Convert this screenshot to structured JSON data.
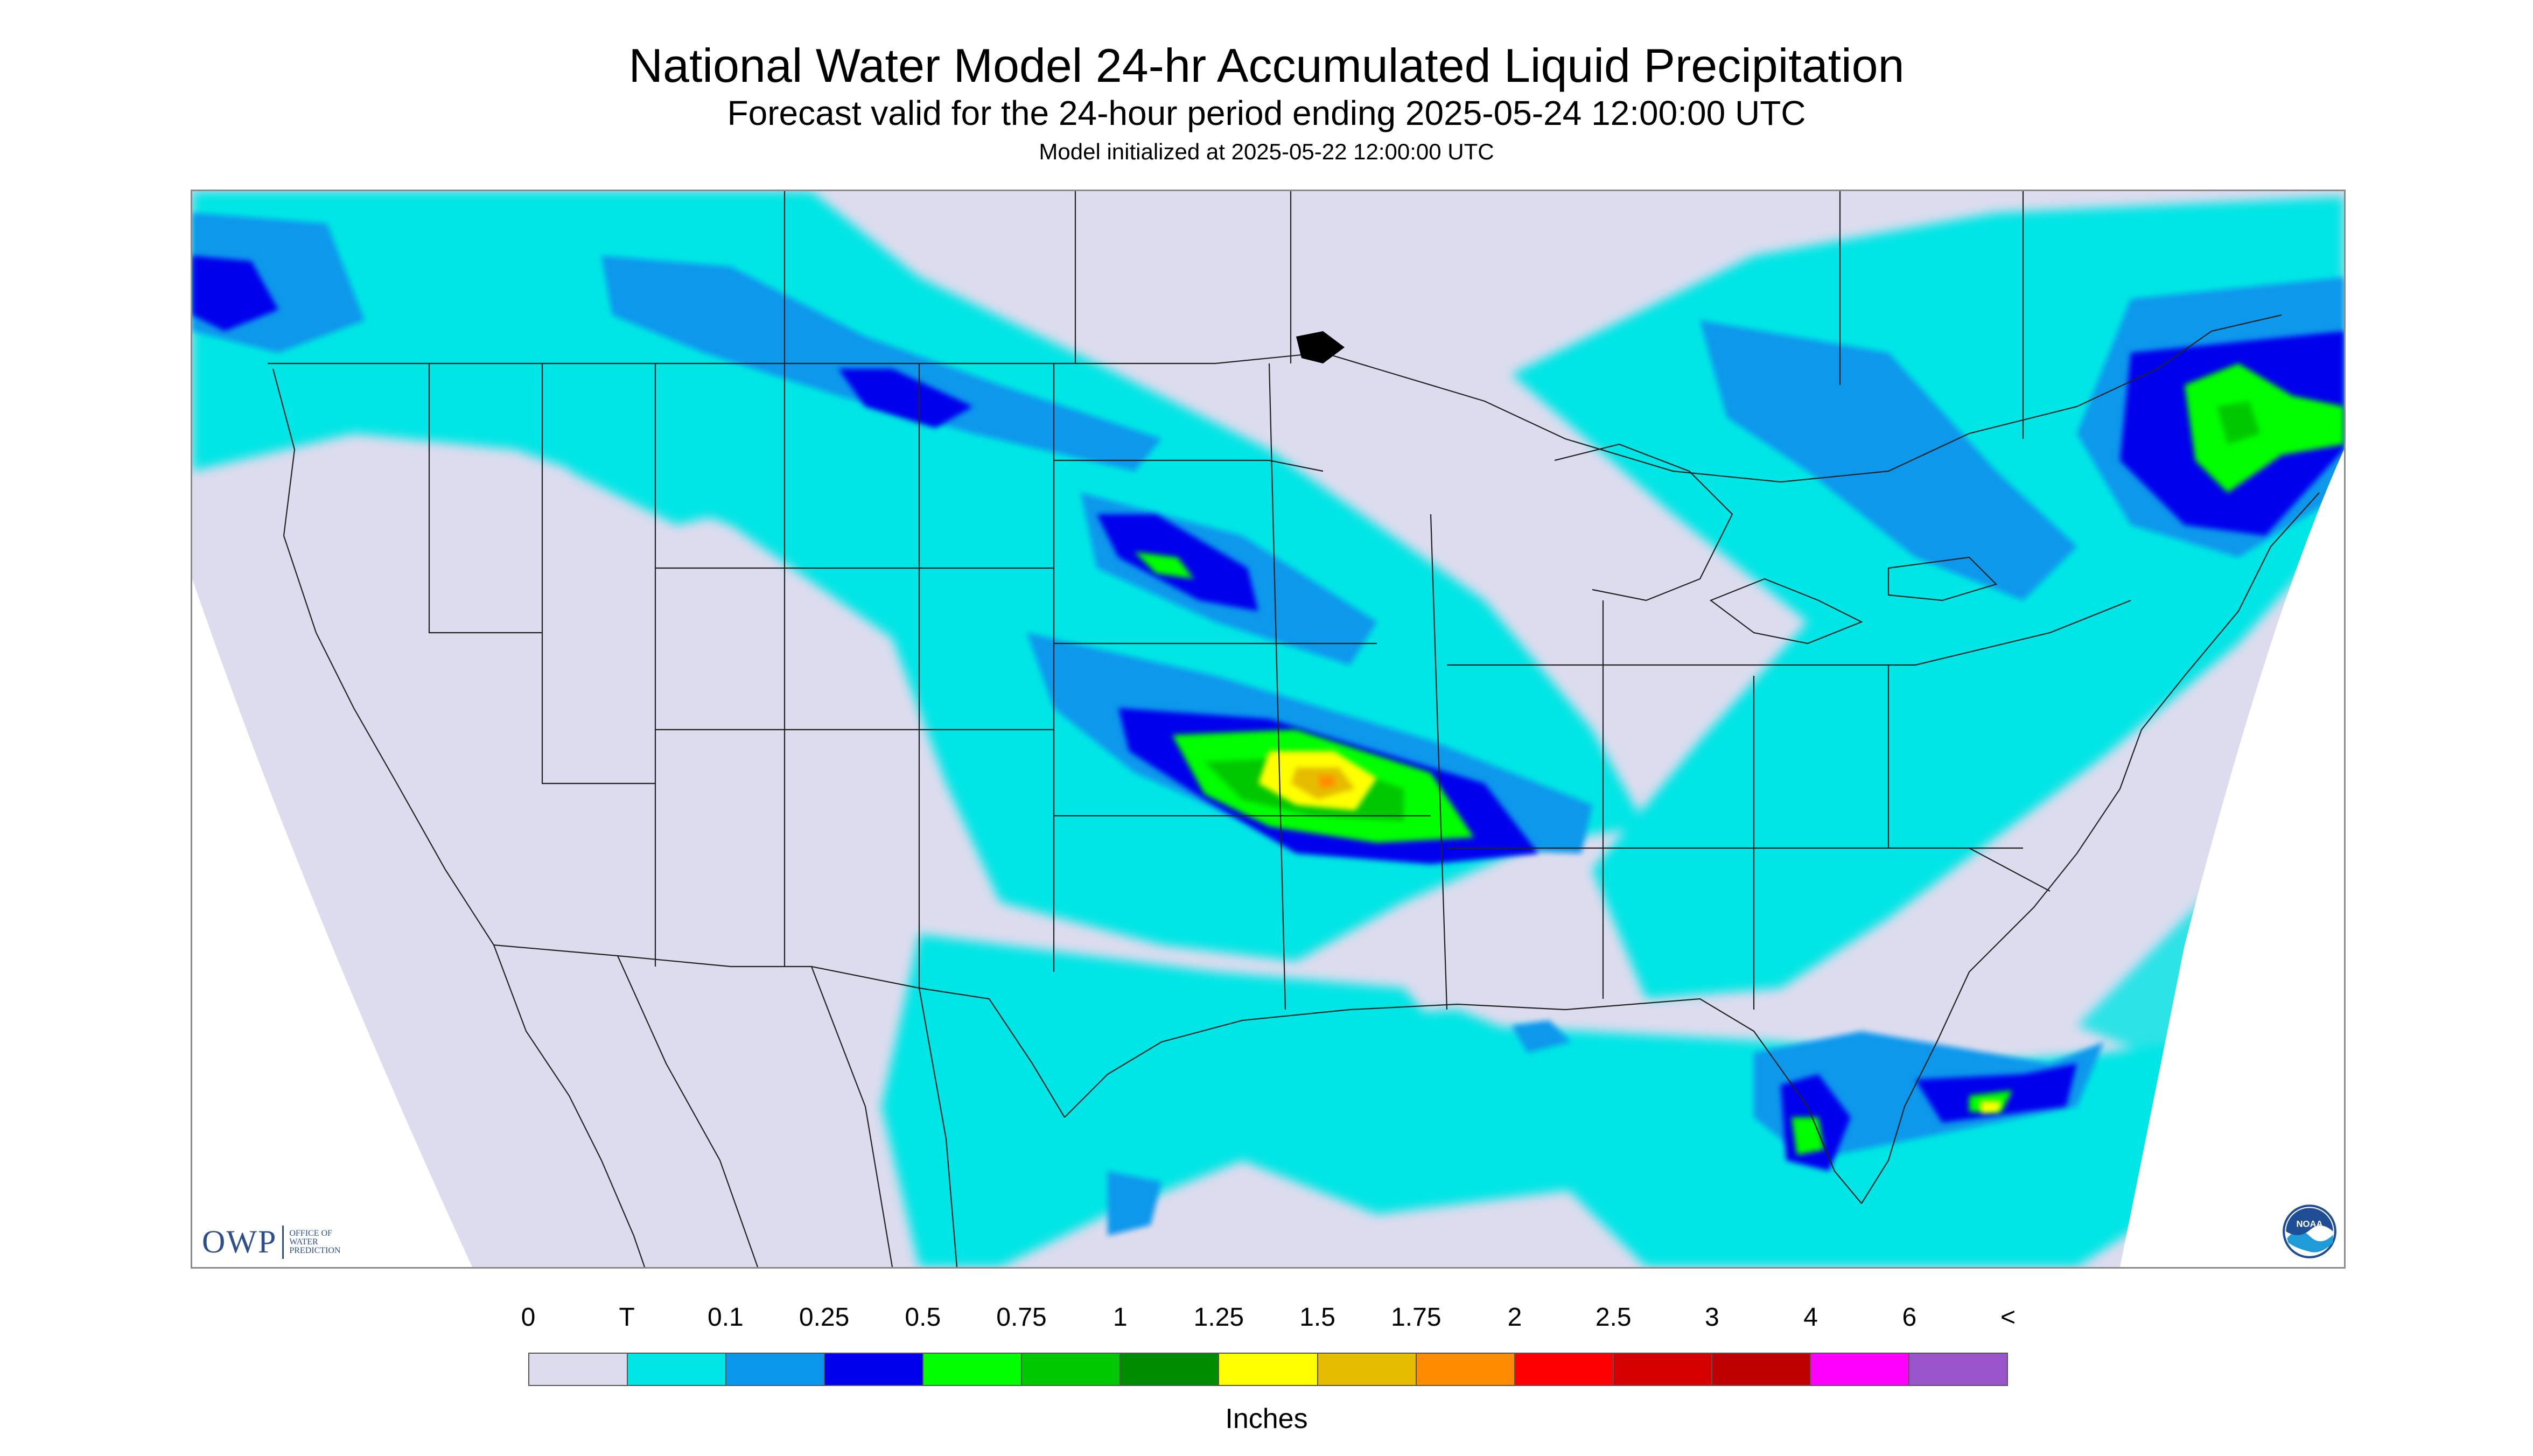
{
  "title": "National Water Model 24-hr Accumulated Liquid Precipitation",
  "subtitle": "Forecast valid for the 24-hour period ending 2025-05-24 12:00:00 UTC",
  "model_init": "Model initialized at 2025-05-22 12:00:00 UTC",
  "owp_logo": {
    "mark": "OWP",
    "line1": "OFFICE OF",
    "line2": "WATER",
    "line3": "PREDICTION"
  },
  "noaa_logo": {
    "text": "NOAA"
  },
  "legend": {
    "title": "Inches",
    "labels": [
      "0",
      "T",
      "0.1",
      "0.25",
      "0.5",
      "0.75",
      "1",
      "1.25",
      "1.5",
      "1.75",
      "2",
      "2.5",
      "3",
      "4",
      "6",
      "<"
    ],
    "colors": [
      "#dcdcee",
      "#00e5e5",
      "#0b98ec",
      "#0000ec",
      "#00ff00",
      "#00c800",
      "#008c00",
      "#ffff00",
      "#e5bc00",
      "#ff8c00",
      "#ff0000",
      "#d70000",
      "#be0000",
      "#ff00ff",
      "#9955c9"
    ]
  }
}
